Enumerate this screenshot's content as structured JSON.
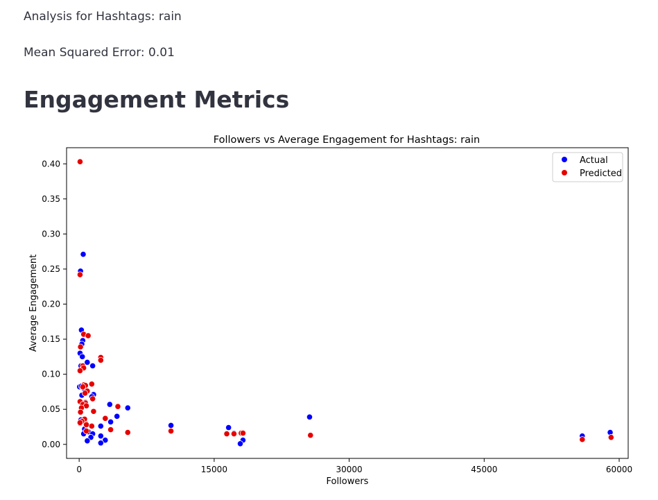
{
  "header": {
    "analysis_line": "Analysis for Hashtags: rain",
    "mse_line": "Mean Squared Error: 0.01",
    "section_title": "Engagement Metrics"
  },
  "chart_data": {
    "type": "scatter",
    "title": "Followers vs Average Engagement for Hashtags: rain",
    "xlabel": "Followers",
    "ylabel": "Average Engagement",
    "xlim": [
      -1400,
      61000
    ],
    "ylim": [
      -0.02,
      0.423
    ],
    "xticks": [
      0,
      15000,
      30000,
      45000,
      60000
    ],
    "xtick_labels": [
      "0",
      "15000",
      "30000",
      "45000",
      "60000"
    ],
    "yticks": [
      0.0,
      0.05,
      0.1,
      0.15,
      0.2,
      0.25,
      0.3,
      0.35,
      0.4
    ],
    "ytick_labels": [
      "0.00",
      "0.05",
      "0.10",
      "0.15",
      "0.20",
      "0.25",
      "0.30",
      "0.35",
      "0.40"
    ],
    "legend_position": "top-right",
    "series": [
      {
        "name": "Actual",
        "color": "#0000ff",
        "points": [
          [
            150,
            0.247
          ],
          [
            450,
            0.271
          ],
          [
            250,
            0.163
          ],
          [
            400,
            0.148
          ],
          [
            300,
            0.143
          ],
          [
            100,
            0.13
          ],
          [
            350,
            0.125
          ],
          [
            200,
            0.112
          ],
          [
            900,
            0.117
          ],
          [
            1500,
            0.112
          ],
          [
            50,
            0.082
          ],
          [
            250,
            0.083
          ],
          [
            500,
            0.08
          ],
          [
            300,
            0.07
          ],
          [
            150,
            0.061
          ],
          [
            700,
            0.06
          ],
          [
            1600,
            0.071
          ],
          [
            1400,
            0.068
          ],
          [
            3400,
            0.057
          ],
          [
            5400,
            0.052
          ],
          [
            4200,
            0.04
          ],
          [
            3500,
            0.032
          ],
          [
            200,
            0.035
          ],
          [
            700,
            0.03
          ],
          [
            100,
            0.03
          ],
          [
            2400,
            0.026
          ],
          [
            10200,
            0.027
          ],
          [
            16600,
            0.024
          ],
          [
            17200,
            0.016
          ],
          [
            25600,
            0.039
          ],
          [
            600,
            0.022
          ],
          [
            1000,
            0.018
          ],
          [
            500,
            0.015
          ],
          [
            1500,
            0.015
          ],
          [
            1300,
            0.01
          ],
          [
            2400,
            0.012
          ],
          [
            900,
            0.005
          ],
          [
            2900,
            0.006
          ],
          [
            2400,
            0.002
          ],
          [
            18200,
            0.006
          ],
          [
            17900,
            0.001
          ],
          [
            55900,
            0.012
          ],
          [
            59000,
            0.017
          ]
        ]
      },
      {
        "name": "Predicted",
        "color": "#e60000",
        "points": [
          [
            100,
            0.403
          ],
          [
            100,
            0.242
          ],
          [
            500,
            0.157
          ],
          [
            1000,
            0.155
          ],
          [
            150,
            0.139
          ],
          [
            2400,
            0.124
          ],
          [
            2400,
            0.12
          ],
          [
            400,
            0.112
          ],
          [
            500,
            0.109
          ],
          [
            100,
            0.105
          ],
          [
            1400,
            0.086
          ],
          [
            550,
            0.085
          ],
          [
            700,
            0.084
          ],
          [
            400,
            0.082
          ],
          [
            900,
            0.076
          ],
          [
            650,
            0.073
          ],
          [
            1500,
            0.065
          ],
          [
            100,
            0.061
          ],
          [
            700,
            0.059
          ],
          [
            400,
            0.057
          ],
          [
            800,
            0.055
          ],
          [
            4300,
            0.054
          ],
          [
            250,
            0.052
          ],
          [
            150,
            0.046
          ],
          [
            1600,
            0.047
          ],
          [
            2900,
            0.037
          ],
          [
            600,
            0.036
          ],
          [
            300,
            0.033
          ],
          [
            100,
            0.031
          ],
          [
            800,
            0.028
          ],
          [
            1400,
            0.026
          ],
          [
            3500,
            0.021
          ],
          [
            800,
            0.019
          ],
          [
            5400,
            0.017
          ],
          [
            10200,
            0.019
          ],
          [
            16400,
            0.015
          ],
          [
            17200,
            0.015
          ],
          [
            18000,
            0.016
          ],
          [
            18200,
            0.016
          ],
          [
            25700,
            0.013
          ],
          [
            55900,
            0.007
          ],
          [
            59100,
            0.01
          ]
        ]
      }
    ]
  }
}
